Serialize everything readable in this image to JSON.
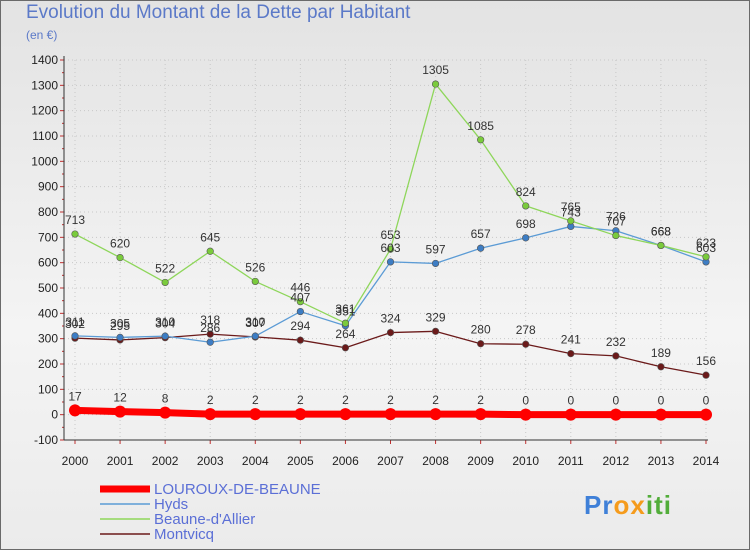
{
  "chart_data": {
    "type": "line",
    "title": "Evolution du Montant de la Dette par Habitant",
    "subtitle": "(en €)",
    "xlabel": "",
    "ylabel": "",
    "x": [
      "2000",
      "2001",
      "2002",
      "2003",
      "2004",
      "2005",
      "2006",
      "2007",
      "2008",
      "2009",
      "2010",
      "2011",
      "2012",
      "2013",
      "2014"
    ],
    "ylim": [
      -100,
      1400
    ],
    "yticks": [
      -100,
      0,
      100,
      200,
      300,
      400,
      500,
      600,
      700,
      800,
      900,
      1000,
      1100,
      1200,
      1300,
      1400
    ],
    "grid": "dotted",
    "legend": "bottom-left",
    "series": [
      {
        "name": "Montvicq",
        "color": "#6b1a1a",
        "values": [
          302,
          295,
          304,
          318,
          307,
          294,
          264,
          324,
          329,
          280,
          278,
          241,
          232,
          189,
          156
        ],
        "labels": [
          "302",
          "295",
          "304",
          "318",
          "307",
          "294",
          "264",
          "324",
          "329",
          "280",
          "278",
          "241",
          "232",
          "189",
          "156"
        ]
      },
      {
        "name": "Hyds",
        "color": "#5b9bd5",
        "values": [
          311,
          305,
          310,
          286,
          310,
          407,
          351,
          603,
          597,
          657,
          698,
          743,
          726,
          668,
          603
        ],
        "labels": [
          "311",
          "305",
          "310",
          "286",
          "310",
          "407",
          "351",
          "603",
          "597",
          "657",
          "698",
          "743",
          "726",
          "668",
          "603"
        ]
      },
      {
        "name": "Beaune-d'Allier",
        "color": "#8ed65a",
        "values": [
          713,
          620,
          522,
          645,
          526,
          446,
          361,
          653,
          1305,
          1085,
          824,
          765,
          707,
          668,
          623
        ],
        "labels": [
          "713",
          "620",
          "522",
          "645",
          "526",
          "446",
          "361",
          "653",
          "1305",
          "1085",
          "824",
          "765",
          "707",
          "668",
          "623"
        ]
      },
      {
        "name": "LOUROUX-DE-BEAUNE",
        "color": "#ff0000",
        "values": [
          17,
          12,
          8,
          2,
          2,
          2,
          2,
          2,
          2,
          2,
          0,
          0,
          0,
          0,
          0
        ],
        "labels": [
          "17",
          "12",
          "8",
          "2",
          "2",
          "2",
          "2",
          "2",
          "2",
          "2",
          "0",
          "0",
          "0",
          "0",
          "0"
        ]
      }
    ],
    "legend_order": [
      "LOUROUX-DE-BEAUNE",
      "Hyds",
      "Beaune-d'Allier",
      "Montvicq"
    ]
  },
  "brand": {
    "text": "Proxiti"
  }
}
